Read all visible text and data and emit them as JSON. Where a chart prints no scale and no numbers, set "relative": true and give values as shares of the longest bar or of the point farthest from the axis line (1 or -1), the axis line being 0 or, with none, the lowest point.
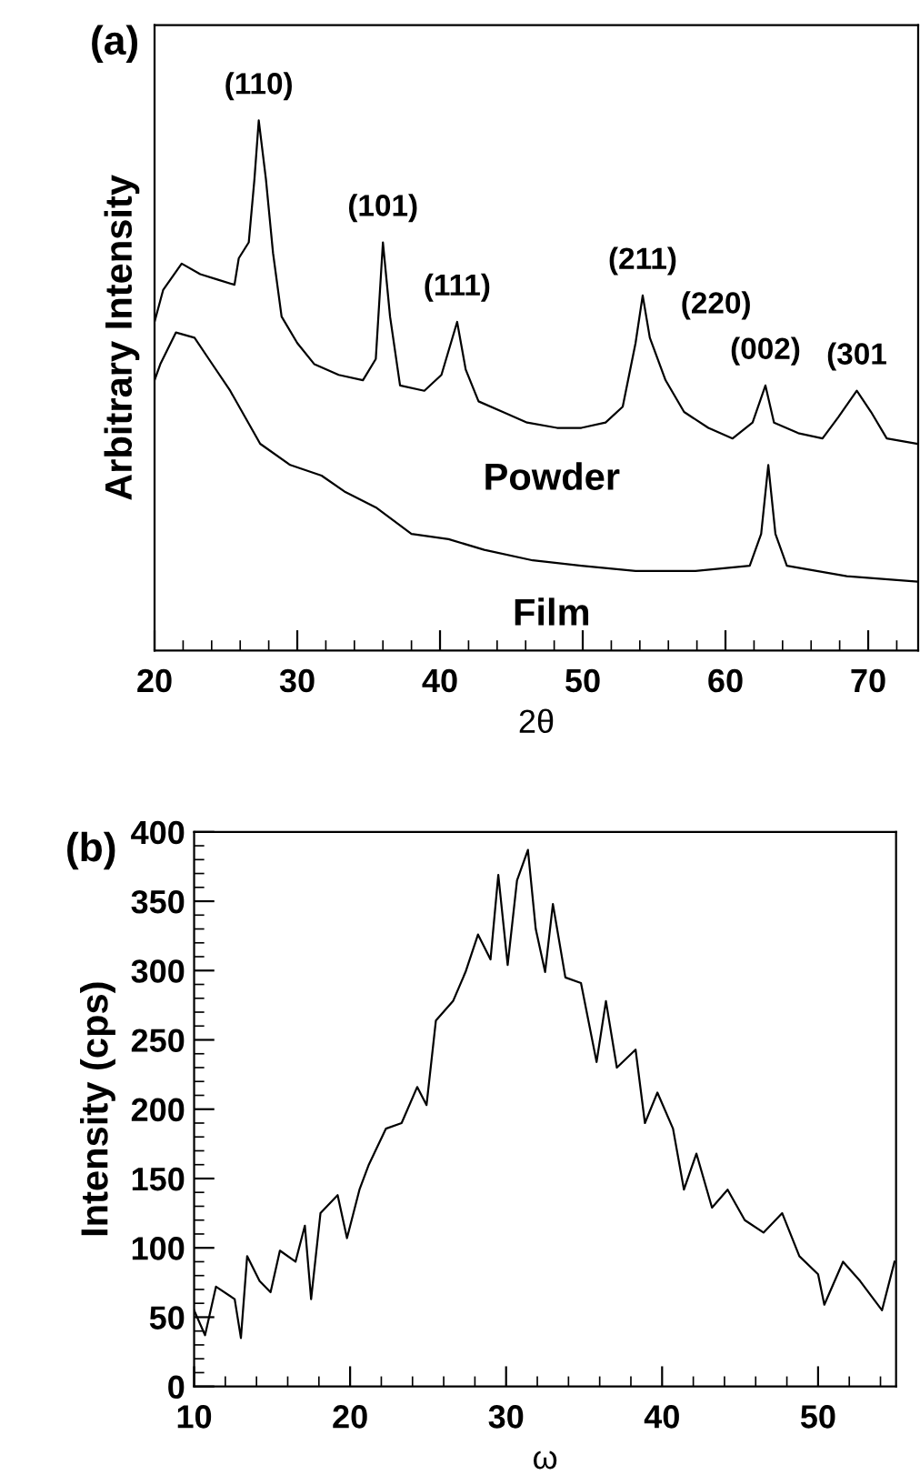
{
  "chart_data": [
    {
      "type": "line",
      "title": "(a)",
      "xlabel": "2θ",
      "ylabel": "Arbitrary Intensity",
      "relative": true,
      "tick_labels": "x",
      "xlim": [
        20,
        73.5
      ],
      "xticks": [
        20,
        {
          "value": 22,
          "label": null
        },
        {
          "value": 24,
          "label": null
        },
        {
          "value": 26,
          "label": null
        },
        {
          "value": 28,
          "label": null
        },
        30,
        {
          "value": 32,
          "label": null
        },
        {
          "value": 34,
          "label": null
        },
        {
          "value": 36,
          "label": null
        },
        {
          "value": 38,
          "label": null
        },
        40,
        {
          "value": 42,
          "label": null
        },
        {
          "value": 44,
          "label": null
        },
        {
          "value": 46,
          "label": null
        },
        {
          "value": 48,
          "label": null
        },
        50,
        {
          "value": 52,
          "label": null
        },
        {
          "value": 54,
          "label": null
        },
        {
          "value": 56,
          "label": null
        },
        {
          "value": 58,
          "label": null
        },
        60,
        {
          "value": 62,
          "label": null
        },
        {
          "value": 64,
          "label": null
        },
        {
          "value": 66,
          "label": null
        },
        {
          "value": 68,
          "label": null
        },
        70,
        {
          "value": 72,
          "label": null
        }
      ],
      "series": [
        {
          "name": "Powder",
          "color": "#000000",
          "x": [
            20.0,
            20.6,
            21.9,
            23.2,
            24.4,
            25.6,
            25.9,
            26.6,
            27.0,
            27.3,
            27.8,
            28.3,
            28.9,
            30.0,
            31.2,
            32.9,
            34.6,
            35.5,
            36.0,
            36.5,
            37.2,
            38.9,
            40.1,
            41.2,
            41.8,
            42.7,
            44.4,
            46.1,
            48.2,
            49.9,
            51.6,
            52.8,
            53.7,
            54.2,
            54.7,
            55.8,
            57.1,
            58.8,
            60.5,
            61.9,
            62.8,
            63.4,
            65.1,
            66.8,
            67.9,
            69.2,
            70.2,
            71.3,
            73.4
          ],
          "values": [
            0.62,
            0.68,
            0.73,
            0.71,
            0.7,
            0.69,
            0.74,
            0.77,
            0.89,
            1.0,
            0.89,
            0.75,
            0.63,
            0.58,
            0.54,
            0.52,
            0.51,
            0.55,
            0.77,
            0.63,
            0.5,
            0.49,
            0.52,
            0.62,
            0.53,
            0.47,
            0.45,
            0.43,
            0.42,
            0.42,
            0.43,
            0.46,
            0.58,
            0.67,
            0.59,
            0.51,
            0.45,
            0.42,
            0.4,
            0.43,
            0.5,
            0.43,
            0.41,
            0.4,
            0.44,
            0.49,
            0.45,
            0.4,
            0.39
          ]
        },
        {
          "name": "Film",
          "color": "#000000",
          "x": [
            20.0,
            20.4,
            21.5,
            22.8,
            23.8,
            25.3,
            27.4,
            29.5,
            31.7,
            33.3,
            35.5,
            38.0,
            40.6,
            43.1,
            46.5,
            49.9,
            53.7,
            57.9,
            61.7,
            62.5,
            63.0,
            63.5,
            64.3,
            68.5,
            73.4
          ],
          "values": [
            0.51,
            0.54,
            0.6,
            0.59,
            0.55,
            0.49,
            0.39,
            0.35,
            0.33,
            0.3,
            0.27,
            0.22,
            0.21,
            0.19,
            0.17,
            0.16,
            0.15,
            0.15,
            0.16,
            0.22,
            0.35,
            0.22,
            0.16,
            0.14,
            0.13
          ]
        }
      ],
      "annotations": [
        {
          "text": "(110)",
          "x": 27.3,
          "y": 1.0
        },
        {
          "text": "(101)",
          "x": 36.0,
          "y": 0.77
        },
        {
          "text": "(111)",
          "x": 41.2,
          "y": 0.62
        },
        {
          "text": "(211)",
          "x": 54.2,
          "y": 0.67
        },
        {
          "text": "(220)",
          "x": 55.8,
          "y": 0.51
        },
        {
          "text": "(002)",
          "x": 62.8,
          "y": 0.5
        },
        {
          "text": "(301",
          "x": 69.2,
          "y": 0.49
        }
      ]
    },
    {
      "type": "line",
      "title": "(b)",
      "xlabel": "ω",
      "ylabel": "Intensity (cps)",
      "xlim": [
        10,
        55
      ],
      "xticks": [
        10,
        {
          "value": 12,
          "label": null
        },
        {
          "value": 14,
          "label": null
        },
        {
          "value": 16,
          "label": null
        },
        {
          "value": 18,
          "label": null
        },
        20,
        {
          "value": 22,
          "label": null
        },
        {
          "value": 24,
          "label": null
        },
        {
          "value": 26,
          "label": null
        },
        {
          "value": 28,
          "label": null
        },
        30,
        {
          "value": 32,
          "label": null
        },
        {
          "value": 34,
          "label": null
        },
        {
          "value": 36,
          "label": null
        },
        {
          "value": 38,
          "label": null
        },
        40,
        {
          "value": 42,
          "label": null
        },
        {
          "value": 44,
          "label": null
        },
        {
          "value": 46,
          "label": null
        },
        {
          "value": 48,
          "label": null
        },
        50,
        {
          "value": 52,
          "label": null
        },
        {
          "value": 54,
          "label": null
        }
      ],
      "ylim": [
        0,
        400
      ],
      "yticks": [
        0,
        50,
        100,
        150,
        200,
        250,
        300,
        350,
        400
      ],
      "series": [
        {
          "color": "#000000",
          "x": [
            10.0,
            10.7,
            11.4,
            12.6,
            13.0,
            13.4,
            14.2,
            14.9,
            15.5,
            16.5,
            17.1,
            17.5,
            18.1,
            19.2,
            19.8,
            20.6,
            21.2,
            22.3,
            23.3,
            24.3,
            24.9,
            25.5,
            26.6,
            27.4,
            28.2,
            29.0,
            29.5,
            30.1,
            30.7,
            31.4,
            31.9,
            32.5,
            33.0,
            33.8,
            34.8,
            35.8,
            36.4,
            37.1,
            38.3,
            38.9,
            39.7,
            40.7,
            41.4,
            42.2,
            43.2,
            44.2,
            45.3,
            46.5,
            47.7,
            48.8,
            50.0,
            50.4,
            51.6,
            52.7,
            54.1,
            54.9
          ],
          "values": [
            55,
            37,
            72,
            63,
            35,
            94,
            76,
            68,
            98,
            90,
            116,
            63,
            125,
            138,
            107,
            142,
            160,
            186,
            190,
            216,
            203,
            264,
            278,
            299,
            326,
            308,
            369,
            304,
            365,
            387,
            330,
            299,
            348,
            295,
            291,
            234,
            278,
            230,
            243,
            190,
            212,
            186,
            142,
            168,
            129,
            142,
            120,
            111,
            125,
            94,
            81,
            59,
            90,
            76,
            55,
            90
          ]
        }
      ]
    }
  ]
}
